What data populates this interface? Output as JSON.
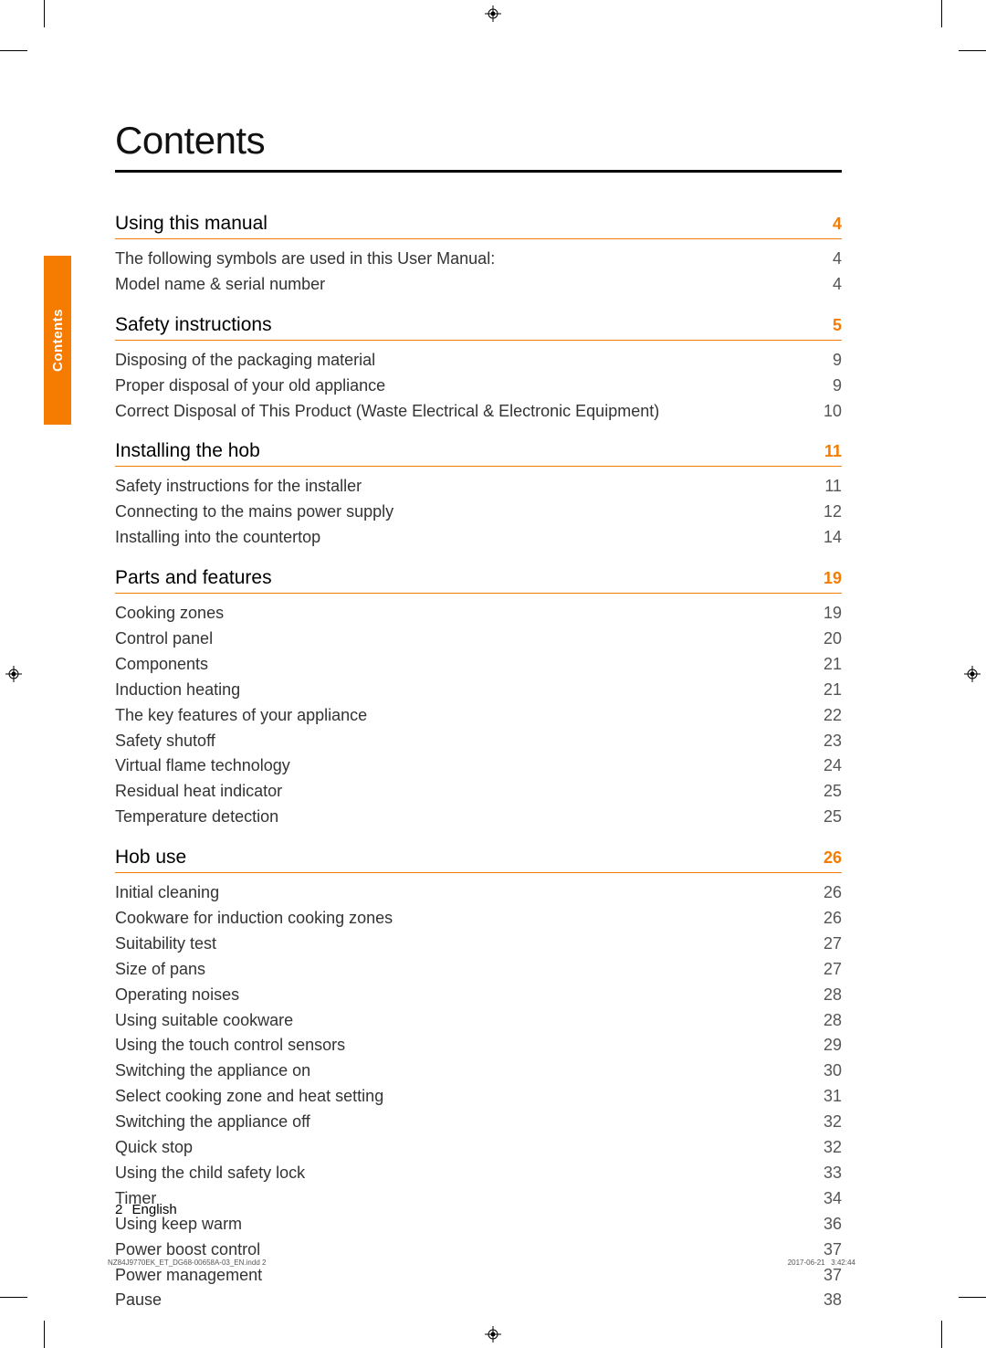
{
  "colors": {
    "accent": "#f57c00",
    "text": "#333333",
    "heading": "#000000",
    "rule": "#000000",
    "page_bg": "#ffffff"
  },
  "typography": {
    "title_fontsize": 42,
    "section_title_fontsize": 21,
    "body_fontsize": 18,
    "footer_fontsize": 15
  },
  "side_tab": {
    "label": "Contents"
  },
  "title": "Contents",
  "sections": [
    {
      "title": "Using this manual",
      "page": "4",
      "items": [
        {
          "label": "The following symbols are used in this User Manual:",
          "page": "4"
        },
        {
          "label": "Model name & serial number",
          "page": "4"
        }
      ]
    },
    {
      "title": "Safety instructions",
      "page": "5",
      "items": [
        {
          "label": "Disposing of the packaging material",
          "page": "9"
        },
        {
          "label": "Proper disposal of your old appliance",
          "page": "9"
        },
        {
          "label": "Correct Disposal of This Product (Waste Electrical & Electronic Equipment)",
          "page": "10"
        }
      ]
    },
    {
      "title": "Installing the hob",
      "page": "11",
      "items": [
        {
          "label": "Safety instructions for the installer",
          "page": "11"
        },
        {
          "label": "Connecting to the mains power supply",
          "page": "12"
        },
        {
          "label": "Installing into the countertop",
          "page": "14"
        }
      ]
    },
    {
      "title": "Parts and features",
      "page": "19",
      "items": [
        {
          "label": "Cooking zones",
          "page": "19"
        },
        {
          "label": "Control panel",
          "page": "20"
        },
        {
          "label": "Components",
          "page": "21"
        },
        {
          "label": "Induction heating",
          "page": "21"
        },
        {
          "label": "The key features of your appliance",
          "page": "22"
        },
        {
          "label": "Safety shutoff",
          "page": "23"
        },
        {
          "label": "Virtual flame technology",
          "page": "24"
        },
        {
          "label": "Residual heat indicator",
          "page": "25"
        },
        {
          "label": "Temperature detection",
          "page": "25"
        }
      ]
    },
    {
      "title": "Hob use",
      "page": "26",
      "items": [
        {
          "label": "Initial cleaning",
          "page": "26"
        },
        {
          "label": "Cookware for induction cooking zones",
          "page": "26"
        },
        {
          "label": "Suitability test",
          "page": "27"
        },
        {
          "label": "Size of pans",
          "page": "27"
        },
        {
          "label": "Operating noises",
          "page": "28"
        },
        {
          "label": "Using suitable cookware",
          "page": "28"
        },
        {
          "label": "Using the touch control sensors",
          "page": "29"
        },
        {
          "label": "Switching the appliance on",
          "page": "30"
        },
        {
          "label": "Select cooking zone and heat setting",
          "page": "31"
        },
        {
          "label": "Switching the appliance off",
          "page": "32"
        },
        {
          "label": "Quick stop",
          "page": "32"
        },
        {
          "label": "Using the child safety lock",
          "page": "33"
        },
        {
          "label": "Timer",
          "page": "34"
        },
        {
          "label": "Using keep warm",
          "page": "36"
        },
        {
          "label": "Power boost control",
          "page": "37"
        },
        {
          "label": "Power management",
          "page": "37"
        },
        {
          "label": "Pause",
          "page": "38"
        }
      ]
    }
  ],
  "footer": {
    "page_number": "2",
    "language": "English",
    "file_ref": "NZ84J9770EK_ET_DG68-00658A-03_EN.indd   2",
    "date": "2017-06-21",
    "time": "3:42:44"
  }
}
